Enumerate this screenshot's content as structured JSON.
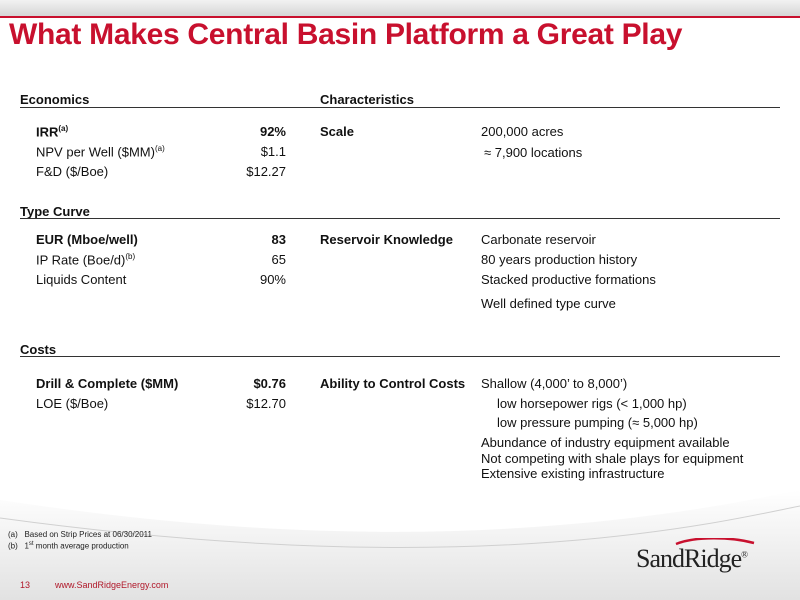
{
  "title": "What Makes Central Basin Platform a Great Play",
  "sections": {
    "economics": {
      "header": "Economics",
      "rows": [
        {
          "label": "IRR",
          "sup": "(a)",
          "value": "92%"
        },
        {
          "label": "NPV per Well ($MM)",
          "sup": "(a)",
          "value": "$1.1"
        },
        {
          "label": "F&D ($/Boe)",
          "sup": "",
          "value": "$12.27"
        }
      ]
    },
    "type_curve": {
      "header": "Type Curve",
      "rows": [
        {
          "label": "EUR (Mboe/well)",
          "sup": "",
          "value": "83"
        },
        {
          "label": "IP Rate (Boe/d)",
          "sup": "(b)",
          "value": "65"
        },
        {
          "label": "Liquids Content",
          "sup": "",
          "value": "90%"
        }
      ]
    },
    "costs": {
      "header": "Costs",
      "rows": [
        {
          "label": "Drill & Complete ($MM)",
          "sup": "",
          "value": "$0.76"
        },
        {
          "label": "LOE ($/Boe)",
          "sup": "",
          "value": "$12.70"
        }
      ]
    },
    "characteristics": {
      "header": "Characteristics",
      "scale": {
        "label": "Scale",
        "lines": [
          "200,000 acres",
          "≈ 7,900 locations"
        ]
      },
      "reservoir": {
        "label": "Reservoir Knowledge",
        "lines": [
          "Carbonate reservoir",
          "80 years production history",
          "Stacked productive formations",
          "Well defined type curve"
        ]
      },
      "control": {
        "label": "Ability to Control Costs",
        "lines": [
          "Shallow (4,000’ to 8,000’)",
          "low horsepower rigs (< 1,000 hp)",
          "low pressure pumping (≈ 5,000 hp)",
          "Abundance of industry equipment available",
          "Not competing with shale plays for equipment",
          "Extensive existing infrastructure"
        ]
      }
    }
  },
  "footnotes": [
    {
      "marker": "(a)",
      "text": "Based on Strip Prices at 06/30/2011"
    },
    {
      "marker": "(b)",
      "text_pre": "1",
      "text_sup": "st",
      "text_post": " month average production"
    }
  ],
  "footer": {
    "page_number": "13",
    "website": "www.SandRidgeEnergy.com"
  },
  "logo": {
    "text": "SandRidge",
    "mark": "®"
  },
  "colors": {
    "accent": "#c8102e",
    "footer_text": "#b0182a"
  }
}
